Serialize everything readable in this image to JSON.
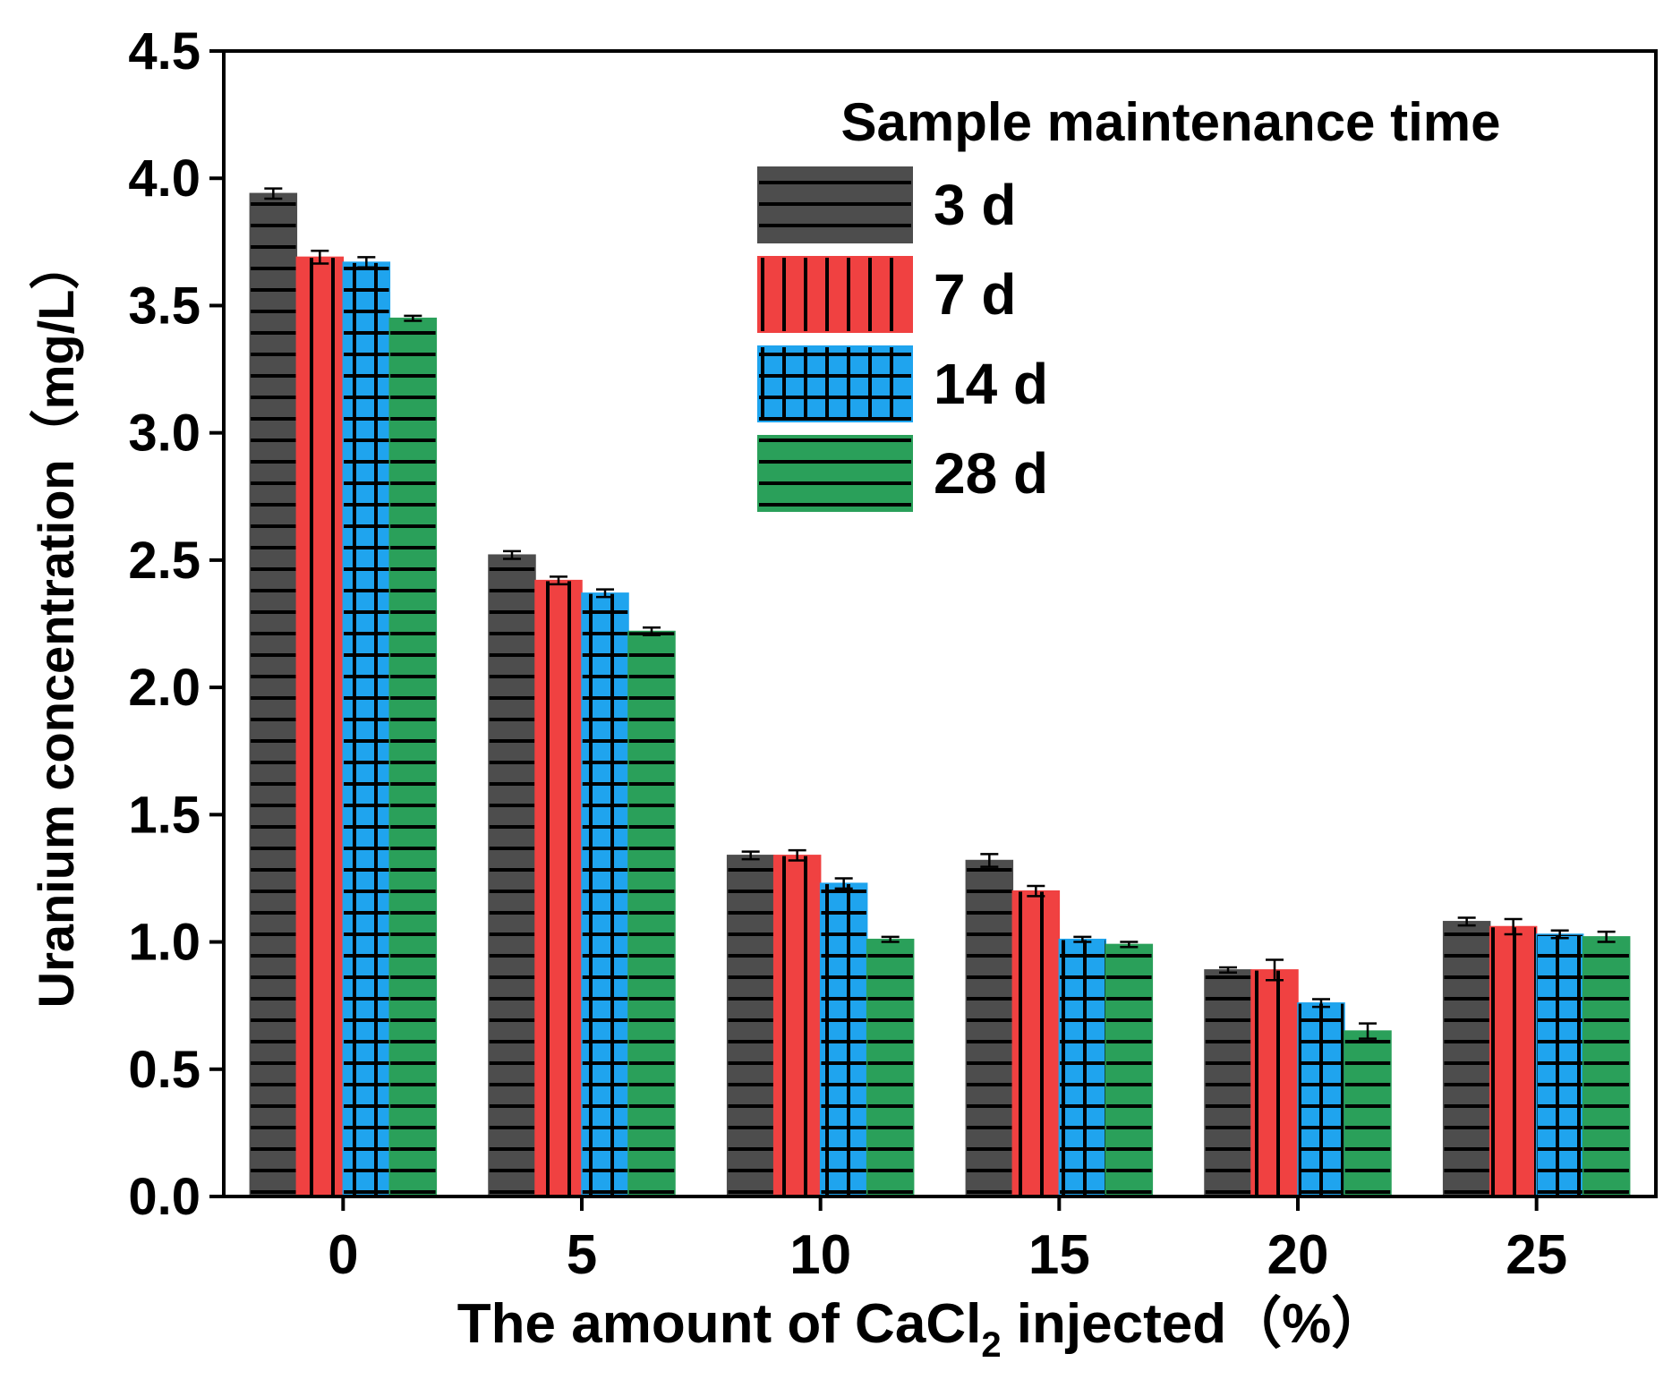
{
  "chart_data": {
    "type": "bar",
    "title": "",
    "xlabel_main": "The amount of CaCl",
    "xlabel_sub": "2",
    "xlabel_tail": " injected（%）",
    "ylabel": "Uranium concentration（mg/L）",
    "categories": [
      "0",
      "5",
      "10",
      "15",
      "20",
      "25"
    ],
    "ylim": [
      0,
      4.5
    ],
    "yticks": [
      "0.0",
      "0.5",
      "1.0",
      "1.5",
      "2.0",
      "2.5",
      "3.0",
      "3.5",
      "4.0",
      "4.5"
    ],
    "legend_title": "Sample maintenance time",
    "legend_position": "top-right",
    "series": [
      {
        "name": "3 d",
        "color": "#4d4d4d",
        "pattern": "horizontal",
        "values": [
          3.94,
          2.52,
          1.34,
          1.32,
          0.89,
          1.08
        ],
        "errors": [
          0.02,
          0.015,
          0.015,
          0.025,
          0.01,
          0.015
        ]
      },
      {
        "name": "7 d",
        "color": "#f04141",
        "pattern": "vertical",
        "values": [
          3.69,
          2.42,
          1.34,
          1.2,
          0.89,
          1.06
        ],
        "errors": [
          0.025,
          0.015,
          0.02,
          0.02,
          0.04,
          0.03
        ]
      },
      {
        "name": "14 d",
        "color": "#1fa4ee",
        "pattern": "grid",
        "values": [
          3.67,
          2.37,
          1.23,
          1.01,
          0.76,
          1.03
        ],
        "errors": [
          0.02,
          0.015,
          0.02,
          0.01,
          0.015,
          0.015
        ]
      },
      {
        "name": "28 d",
        "color": "#2aa05a",
        "pattern": "horizontal",
        "values": [
          3.45,
          2.22,
          1.01,
          0.99,
          0.65,
          1.02
        ],
        "errors": [
          0.01,
          0.015,
          0.01,
          0.01,
          0.03,
          0.02
        ]
      }
    ]
  }
}
